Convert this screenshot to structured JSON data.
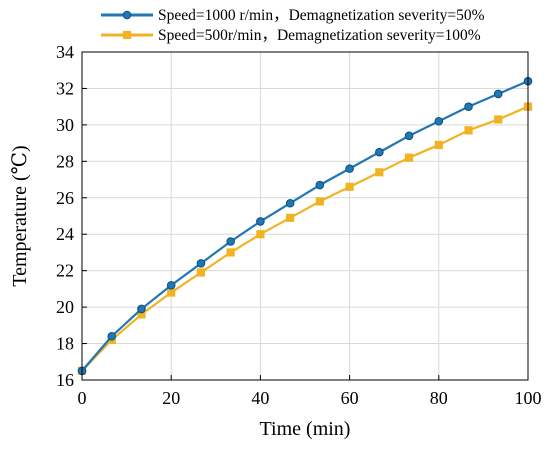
{
  "colors": {
    "series_1": "#1f77b4",
    "series_2": "#f0b323",
    "grid": "#d9d9d9",
    "axis": "#000000"
  },
  "chart_data": {
    "type": "line",
    "xlabel": "Time (min)",
    "ylabel": "Temperature (℃)",
    "xlim": [
      0,
      100
    ],
    "ylim": [
      16,
      34
    ],
    "xticks": [
      0,
      20,
      40,
      60,
      80,
      100
    ],
    "yticks": [
      16,
      18,
      20,
      22,
      24,
      26,
      28,
      30,
      32,
      34
    ],
    "grid": true,
    "legend_position": "top",
    "series": [
      {
        "name": "Speed=1000 r/min，Demagnetization severity=50%",
        "marker": "circle",
        "x": [
          0,
          6.67,
          13.33,
          20,
          26.67,
          33.33,
          40,
          46.67,
          53.33,
          60,
          66.67,
          73.33,
          80,
          86.67,
          93.33,
          100
        ],
        "y": [
          16.5,
          18.4,
          19.9,
          21.2,
          22.4,
          23.6,
          24.7,
          25.7,
          26.7,
          27.6,
          28.5,
          29.4,
          30.2,
          31.0,
          31.7,
          32.4
        ]
      },
      {
        "name": "Speed=500r/min，Demagnetization severity=100%",
        "marker": "square",
        "x": [
          0,
          6.67,
          13.33,
          20,
          26.67,
          33.33,
          40,
          46.67,
          53.33,
          60,
          66.67,
          73.33,
          80,
          86.67,
          93.33,
          100
        ],
        "y": [
          16.5,
          18.2,
          19.6,
          20.8,
          21.9,
          23.0,
          24.0,
          24.9,
          25.8,
          26.6,
          27.4,
          28.2,
          28.9,
          29.7,
          30.3,
          31.0
        ]
      }
    ]
  }
}
